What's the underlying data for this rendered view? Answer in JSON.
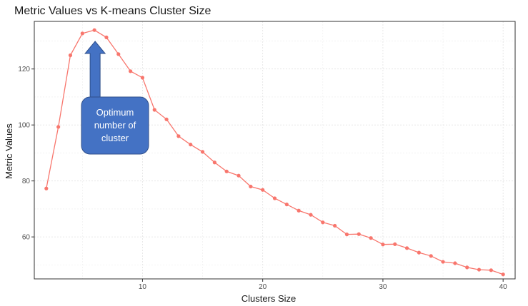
{
  "chart_data": {
    "type": "line",
    "title": "Metric Values vs K-means Cluster Size",
    "xlabel": "Clusters Size",
    "ylabel": "Metric Values",
    "xlim": [
      1,
      41
    ],
    "ylim": [
      45,
      137
    ],
    "x_ticks": [
      10,
      20,
      30,
      40
    ],
    "y_ticks": [
      60,
      80,
      100,
      120
    ],
    "grid": true,
    "legend": "none",
    "series": [
      {
        "color": "#f8766d",
        "x": [
          2,
          3,
          4,
          5,
          6,
          7,
          8,
          9,
          10,
          11,
          12,
          13,
          14,
          15,
          16,
          17,
          18,
          19,
          20,
          21,
          22,
          23,
          24,
          25,
          26,
          27,
          28,
          29,
          30,
          31,
          32,
          33,
          34,
          35,
          36,
          37,
          38,
          39,
          40
        ],
        "y": [
          77.3,
          99.3,
          124.9,
          132.7,
          133.9,
          131.3,
          125.3,
          119.2,
          116.9,
          105.4,
          102.0,
          96.0,
          93.0,
          90.4,
          86.6,
          83.4,
          81.9,
          78.0,
          76.8,
          73.8,
          71.6,
          69.4,
          67.9,
          65.2,
          64.0,
          60.9,
          61.0,
          59.6,
          57.3,
          57.4,
          56.0,
          54.4,
          53.2,
          51.1,
          50.6,
          49.1,
          48.3,
          48.1,
          46.6
        ]
      }
    ],
    "annotation": {
      "text_lines": [
        "Optimum",
        "number of",
        "cluster"
      ],
      "points_to_x": 6,
      "fill": "#4472c4",
      "border": "#2f4f8a"
    }
  }
}
